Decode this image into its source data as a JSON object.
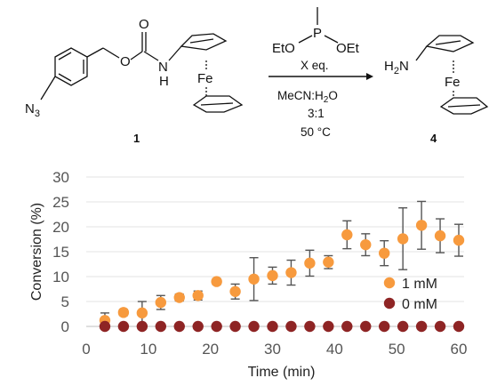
{
  "scheme": {
    "reagent": {
      "substituent_left": "EtO",
      "substituent_right": "OEt",
      "phosphorus": "P"
    },
    "conditions": {
      "equivalents": "X eq.",
      "solvent": "MeCN:H",
      "solvent_sub": "2",
      "solvent_end": "O",
      "ratio": "3:1",
      "temperature": "50 °C"
    },
    "compound_1": {
      "label": "1",
      "azide": "N",
      "azide_sub": "3",
      "carbonyl_O": "O",
      "ester_O": "O",
      "amide": "N",
      "amide_H": "H",
      "metal": "Fe"
    },
    "compound_4": {
      "label": "4",
      "amine_H": "H",
      "amine_sub": "2",
      "amine_N": "N",
      "metal": "Fe"
    }
  },
  "chart_data": {
    "type": "scatter",
    "xlabel": "Time (min)",
    "ylabel": "Conversion (%)",
    "xlim": [
      0,
      62
    ],
    "ylim": [
      0,
      30
    ],
    "x_ticks": [
      0,
      10,
      20,
      30,
      40,
      50,
      60
    ],
    "y_ticks": [
      0,
      5,
      10,
      15,
      20,
      25,
      30
    ],
    "grid": "horizontal",
    "legend_position": "bottom-right",
    "series": [
      {
        "name": "1 mM",
        "color": "#F79A3E",
        "x": [
          3,
          6,
          9,
          12,
          15,
          18,
          21,
          24,
          27,
          30,
          33,
          36,
          39,
          42,
          45,
          48,
          51,
          54,
          57,
          60
        ],
        "y": [
          1.2,
          2.8,
          2.7,
          4.8,
          5.8,
          6.2,
          9.0,
          7.0,
          9.5,
          10.2,
          10.8,
          12.7,
          12.9,
          18.4,
          16.4,
          14.7,
          17.6,
          20.3,
          18.2,
          17.3
        ],
        "error": [
          1.5,
          0.6,
          2.3,
          1.4,
          0.7,
          0.9,
          0.6,
          1.5,
          4.3,
          1.7,
          2.5,
          2.6,
          1.3,
          2.8,
          2.2,
          2.5,
          6.2,
          4.8,
          3.4,
          3.2
        ]
      },
      {
        "name": "0 mM",
        "color": "#8E2424",
        "x": [
          3,
          6,
          9,
          12,
          15,
          18,
          21,
          24,
          27,
          30,
          33,
          36,
          39,
          42,
          45,
          48,
          51,
          54,
          57,
          60
        ],
        "y": [
          0,
          0,
          0,
          0,
          0,
          0,
          0,
          0,
          0,
          0,
          0,
          0,
          0,
          0,
          0,
          0,
          0,
          0,
          0,
          0
        ],
        "error": [
          0,
          0,
          0,
          0,
          0,
          0,
          0,
          0,
          0,
          0,
          0,
          0,
          0,
          0,
          0,
          0,
          0,
          0,
          0,
          0
        ]
      }
    ]
  }
}
